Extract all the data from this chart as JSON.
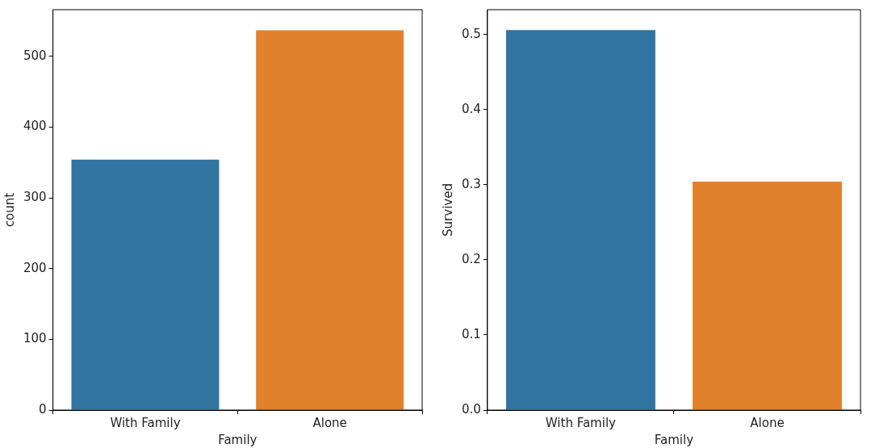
{
  "chart_data": [
    {
      "type": "bar",
      "categories": [
        "With Family",
        "Alone"
      ],
      "values": [
        354,
        537
      ],
      "colors": [
        "#3274a1",
        "#e1812c"
      ],
      "xlabel": "Family",
      "ylabel": "count",
      "ylim": [
        0,
        566
      ],
      "yticks": [
        0,
        100,
        200,
        300,
        400,
        500
      ],
      "grid": false
    },
    {
      "type": "bar",
      "categories": [
        "With Family",
        "Alone"
      ],
      "values": [
        0.506,
        0.304
      ],
      "colors": [
        "#3274a1",
        "#e1812c"
      ],
      "xlabel": "Family",
      "ylabel": "Survived",
      "ylim": [
        0,
        0.533
      ],
      "yticks": [
        {
          "value": 0,
          "label": "0.0"
        },
        0.1,
        0.2,
        0.3,
        0.4,
        0.5
      ],
      "grid": false
    }
  ]
}
